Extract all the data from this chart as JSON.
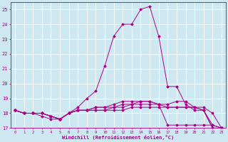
{
  "background_color": "#cde8f0",
  "grid_color": "#ffffff",
  "line_color": "#aa0088",
  "xlabel": "Windchill (Refroidissement éolien,°C)",
  "xlim": [
    -0.5,
    23.5
  ],
  "ylim": [
    17,
    25.5
  ],
  "yticks": [
    17,
    18,
    19,
    20,
    21,
    22,
    23,
    24,
    25
  ],
  "xticks": [
    0,
    1,
    2,
    3,
    4,
    5,
    6,
    7,
    8,
    9,
    10,
    11,
    12,
    13,
    14,
    15,
    16,
    17,
    18,
    19,
    20,
    21,
    22,
    23
  ],
  "series": [
    [
      18.2,
      18.0,
      18.0,
      17.8,
      17.6,
      17.6,
      18.0,
      18.4,
      19.0,
      19.5,
      21.2,
      23.2,
      24.0,
      24.0,
      25.0,
      25.2,
      23.2,
      19.8,
      19.8,
      18.6,
      18.2,
      18.2,
      17.0,
      17.0
    ],
    [
      18.2,
      18.0,
      18.0,
      18.0,
      17.8,
      17.6,
      18.0,
      18.2,
      18.2,
      18.2,
      18.2,
      18.2,
      18.2,
      18.4,
      18.4,
      18.4,
      18.4,
      18.4,
      18.4,
      18.4,
      18.4,
      18.4,
      18.0,
      17.0
    ],
    [
      18.2,
      18.0,
      18.0,
      18.0,
      17.8,
      17.6,
      18.0,
      18.2,
      18.2,
      18.2,
      18.2,
      18.4,
      18.6,
      18.6,
      18.6,
      18.6,
      18.6,
      18.6,
      18.8,
      18.8,
      18.4,
      18.2,
      17.0,
      17.0
    ],
    [
      18.2,
      18.0,
      18.0,
      18.0,
      17.8,
      17.6,
      18.0,
      18.2,
      18.2,
      18.4,
      18.4,
      18.4,
      18.4,
      18.6,
      18.8,
      18.8,
      18.6,
      18.4,
      18.4,
      18.4,
      18.4,
      18.2,
      17.2,
      17.0
    ],
    [
      18.2,
      18.0,
      18.0,
      18.0,
      17.8,
      17.6,
      18.0,
      18.2,
      18.2,
      18.4,
      18.4,
      18.6,
      18.8,
      18.8,
      18.8,
      18.8,
      18.6,
      17.2,
      17.2,
      17.2,
      17.2,
      17.2,
      17.2,
      17.0
    ]
  ],
  "marker": "D",
  "markersize": 1.5,
  "linewidth": 0.7,
  "figsize": [
    3.2,
    2.0
  ],
  "dpi": 100
}
